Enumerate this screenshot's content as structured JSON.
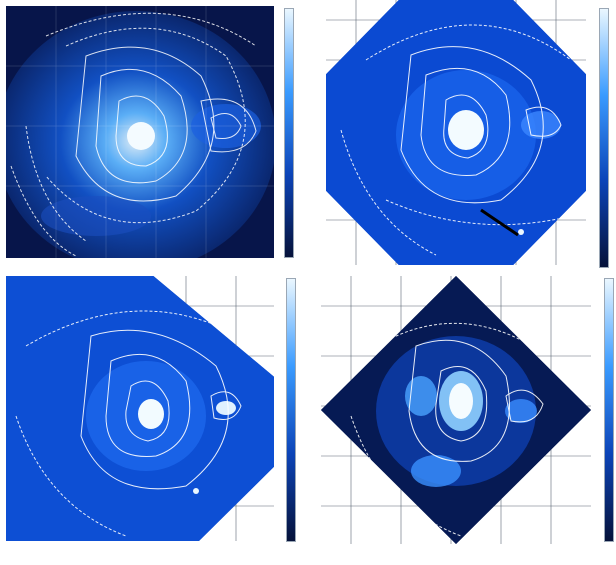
{
  "figure": {
    "panels": [
      {
        "id": "top-left",
        "shape": "square",
        "colormap": "blue-dark"
      },
      {
        "id": "top-right",
        "shape": "octagon",
        "colormap": "blue-light",
        "arrow": true
      },
      {
        "id": "bottom-left",
        "shape": "diamond-clipped",
        "colormap": "blue-light"
      },
      {
        "id": "bottom-right",
        "shape": "diamond",
        "colormap": "blue-dark"
      }
    ],
    "colors": {
      "deep": "#06123a",
      "mid": "#0a3fa8",
      "bright": "#2f8cff",
      "hot": "#e9f6ff",
      "contour": "#ffffff",
      "grid": "#5b6674"
    }
  }
}
